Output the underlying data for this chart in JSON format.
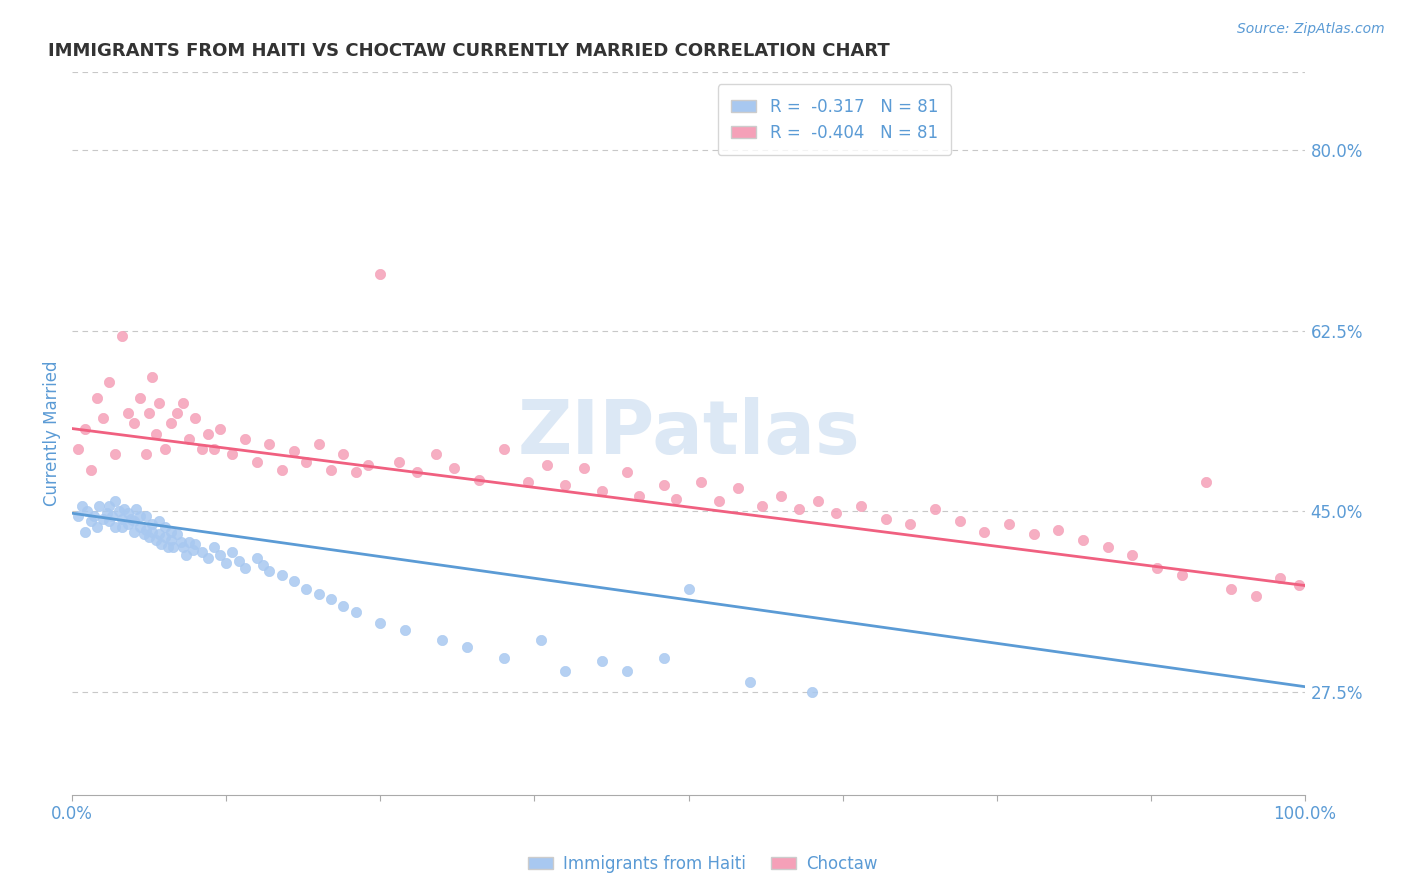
{
  "title": "IMMIGRANTS FROM HAITI VS CHOCTAW CURRENTLY MARRIED CORRELATION CHART",
  "source_text": "Source: ZipAtlas.com",
  "ylabel": "Currently Married",
  "x_label_haiti": "Immigrants from Haiti",
  "x_label_choctaw": "Choctaw",
  "legend_haiti": "R =  -0.317   N = 81",
  "legend_choctaw": "R =  -0.404   N = 81",
  "haiti_color": "#a8c8f0",
  "choctaw_color": "#f5a0b8",
  "haiti_line_color": "#5b9bd5",
  "choctaw_line_color": "#f06080",
  "tick_label_color": "#5b9bd5",
  "grid_color": "#c8c8c8",
  "watermark": "ZIPatlas",
  "watermark_color": "#dce8f5",
  "x_min": 0.0,
  "x_max": 1.0,
  "y_min": 0.175,
  "y_max": 0.875,
  "y_ticks": [
    0.275,
    0.45,
    0.625,
    0.8
  ],
  "y_tick_labels": [
    "27.5%",
    "45.0%",
    "62.5%",
    "80.0%"
  ],
  "x_ticks": [
    0.0,
    0.125,
    0.25,
    0.375,
    0.5,
    0.625,
    0.75,
    0.875,
    1.0
  ],
  "x_tick_labels_shown": [
    "0.0%",
    "",
    "",
    "",
    "",
    "",
    "",
    "",
    "100.0%"
  ],
  "haiti_scatter_x": [
    0.005,
    0.008,
    0.01,
    0.012,
    0.015,
    0.018,
    0.02,
    0.022,
    0.025,
    0.028,
    0.03,
    0.03,
    0.032,
    0.035,
    0.035,
    0.038,
    0.04,
    0.04,
    0.042,
    0.045,
    0.045,
    0.048,
    0.05,
    0.05,
    0.052,
    0.055,
    0.055,
    0.058,
    0.06,
    0.06,
    0.062,
    0.065,
    0.065,
    0.068,
    0.07,
    0.07,
    0.072,
    0.075,
    0.075,
    0.078,
    0.08,
    0.08,
    0.082,
    0.085,
    0.088,
    0.09,
    0.092,
    0.095,
    0.098,
    0.1,
    0.105,
    0.11,
    0.115,
    0.12,
    0.125,
    0.13,
    0.135,
    0.14,
    0.15,
    0.155,
    0.16,
    0.17,
    0.18,
    0.19,
    0.2,
    0.21,
    0.22,
    0.23,
    0.25,
    0.27,
    0.3,
    0.32,
    0.35,
    0.38,
    0.4,
    0.43,
    0.45,
    0.48,
    0.5,
    0.55,
    0.6
  ],
  "haiti_scatter_y": [
    0.445,
    0.455,
    0.43,
    0.45,
    0.44,
    0.445,
    0.435,
    0.455,
    0.442,
    0.448,
    0.44,
    0.455,
    0.445,
    0.435,
    0.46,
    0.45,
    0.442,
    0.435,
    0.452,
    0.438,
    0.448,
    0.442,
    0.44,
    0.43,
    0.452,
    0.445,
    0.435,
    0.428,
    0.445,
    0.432,
    0.425,
    0.438,
    0.43,
    0.422,
    0.44,
    0.428,
    0.418,
    0.435,
    0.425,
    0.415,
    0.43,
    0.422,
    0.415,
    0.428,
    0.42,
    0.415,
    0.408,
    0.42,
    0.412,
    0.418,
    0.41,
    0.405,
    0.415,
    0.408,
    0.4,
    0.41,
    0.402,
    0.395,
    0.405,
    0.398,
    0.392,
    0.388,
    0.382,
    0.375,
    0.37,
    0.365,
    0.358,
    0.352,
    0.342,
    0.335,
    0.325,
    0.318,
    0.308,
    0.325,
    0.295,
    0.305,
    0.295,
    0.308,
    0.375,
    0.285,
    0.275
  ],
  "choctaw_scatter_x": [
    0.005,
    0.01,
    0.015,
    0.02,
    0.025,
    0.03,
    0.035,
    0.04,
    0.045,
    0.05,
    0.055,
    0.06,
    0.062,
    0.065,
    0.068,
    0.07,
    0.075,
    0.08,
    0.085,
    0.09,
    0.095,
    0.1,
    0.105,
    0.11,
    0.115,
    0.12,
    0.13,
    0.14,
    0.15,
    0.16,
    0.17,
    0.18,
    0.19,
    0.2,
    0.21,
    0.22,
    0.23,
    0.24,
    0.25,
    0.265,
    0.28,
    0.295,
    0.31,
    0.33,
    0.35,
    0.37,
    0.385,
    0.4,
    0.415,
    0.43,
    0.45,
    0.46,
    0.48,
    0.49,
    0.51,
    0.525,
    0.54,
    0.56,
    0.575,
    0.59,
    0.605,
    0.62,
    0.64,
    0.66,
    0.68,
    0.7,
    0.72,
    0.74,
    0.76,
    0.78,
    0.8,
    0.82,
    0.84,
    0.86,
    0.88,
    0.9,
    0.92,
    0.94,
    0.96,
    0.98,
    0.995
  ],
  "choctaw_scatter_y": [
    0.51,
    0.53,
    0.49,
    0.56,
    0.54,
    0.575,
    0.505,
    0.62,
    0.545,
    0.535,
    0.56,
    0.505,
    0.545,
    0.58,
    0.525,
    0.555,
    0.51,
    0.535,
    0.545,
    0.555,
    0.52,
    0.54,
    0.51,
    0.525,
    0.51,
    0.53,
    0.505,
    0.52,
    0.498,
    0.515,
    0.49,
    0.508,
    0.498,
    0.515,
    0.49,
    0.505,
    0.488,
    0.495,
    0.68,
    0.498,
    0.488,
    0.505,
    0.492,
    0.48,
    0.51,
    0.478,
    0.495,
    0.475,
    0.492,
    0.47,
    0.488,
    0.465,
    0.475,
    0.462,
    0.478,
    0.46,
    0.472,
    0.455,
    0.465,
    0.452,
    0.46,
    0.448,
    0.455,
    0.442,
    0.438,
    0.452,
    0.44,
    0.43,
    0.438,
    0.428,
    0.432,
    0.422,
    0.415,
    0.408,
    0.395,
    0.388,
    0.478,
    0.375,
    0.368,
    0.385,
    0.378
  ],
  "haiti_line_start_y": 0.448,
  "haiti_line_end_y": 0.28,
  "choctaw_line_start_y": 0.53,
  "choctaw_line_end_y": 0.378
}
